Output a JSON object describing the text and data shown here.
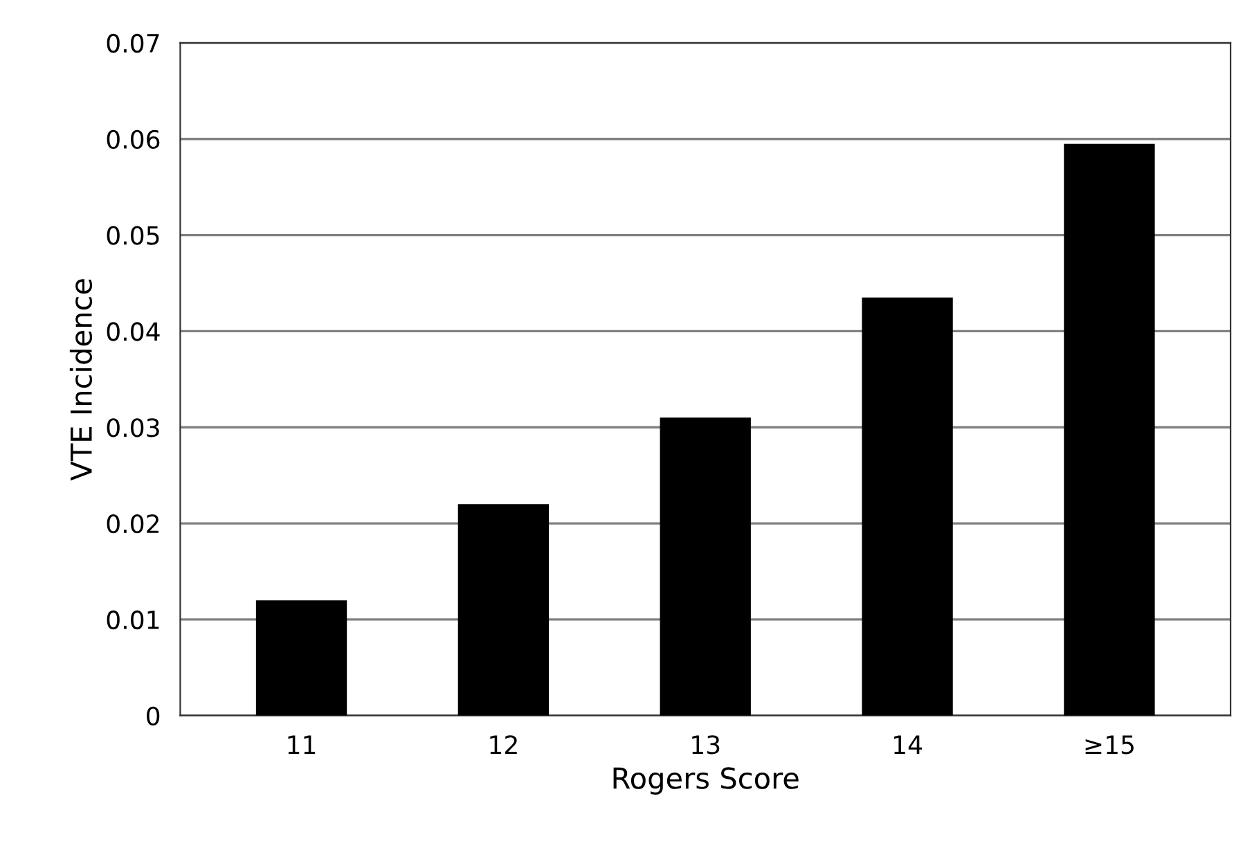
{
  "chart_data": {
    "type": "bar",
    "xlabel": "Rogers Score",
    "ylabel": "VTE Incidence",
    "categories": [
      "11",
      "12",
      "13",
      "14",
      "≥15"
    ],
    "values": [
      0.012,
      0.022,
      0.031,
      0.0435,
      0.0595
    ],
    "color": "#000000",
    "ylim": [
      0,
      0.07
    ],
    "yticks": [
      0,
      0.01,
      0.02,
      0.03,
      0.04,
      0.05,
      0.06,
      0.07
    ],
    "grid": "y"
  }
}
